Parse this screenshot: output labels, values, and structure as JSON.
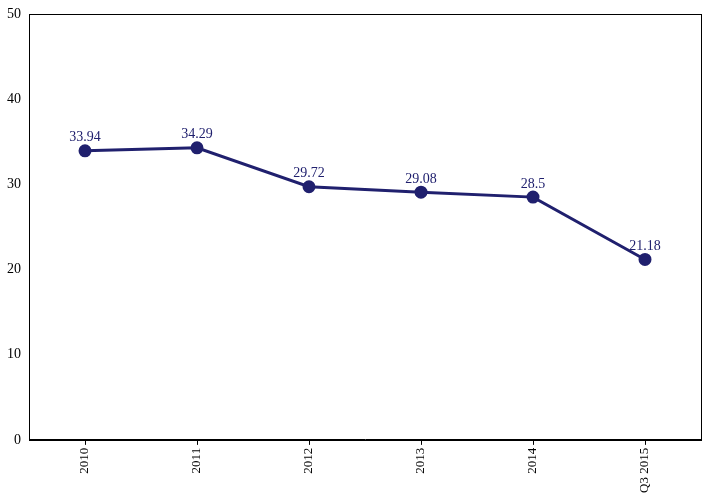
{
  "chart_data": {
    "type": "line",
    "categories": [
      "2010",
      "2011",
      "2012",
      "2013",
      "2014",
      "Q3 2015"
    ],
    "values": [
      33.94,
      34.29,
      29.72,
      29.08,
      28.5,
      21.18
    ],
    "color": "#20206e",
    "marker": "circle",
    "line_style": "solid",
    "ylim": [
      0,
      50
    ],
    "yticks": [
      0,
      10,
      20,
      30,
      40,
      50
    ],
    "grid": false,
    "data_labels": true
  }
}
